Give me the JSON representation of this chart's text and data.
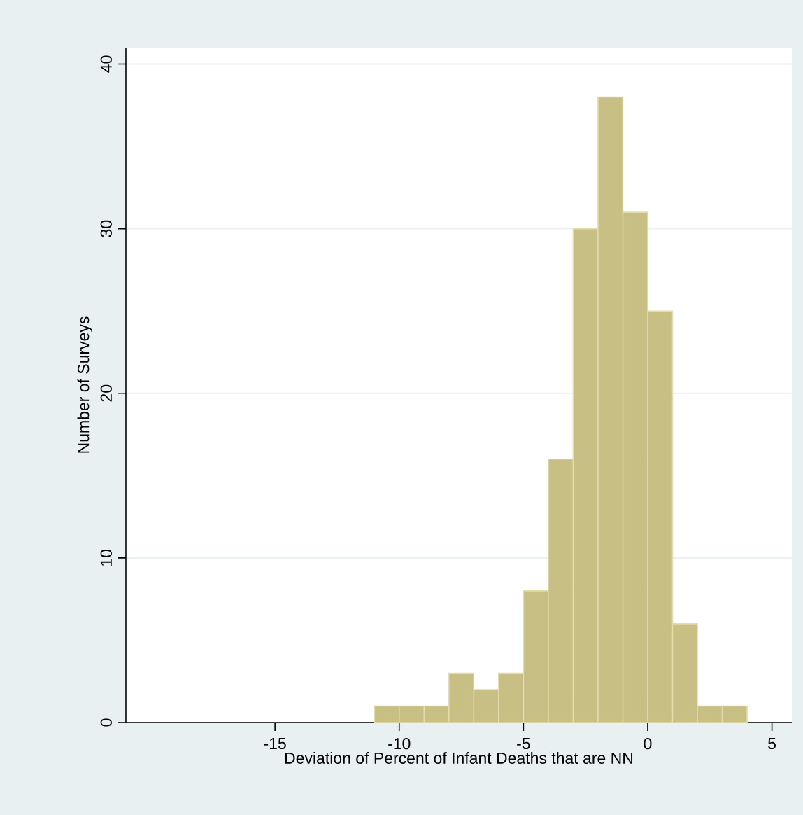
{
  "chart_data": {
    "type": "histogram",
    "xlabel": "Deviation of Percent of Infant Deaths that are NN",
    "ylabel": "Number of Surveys",
    "bins": [
      -11,
      -10,
      -9,
      -8,
      -7,
      -6,
      -5,
      -4,
      -3,
      -2,
      -1,
      0,
      1,
      2,
      3,
      4
    ],
    "values": [
      1,
      1,
      1,
      3,
      2,
      3,
      8,
      16,
      30,
      38,
      31,
      25,
      6,
      1,
      1
    ],
    "color": "#c8bf84",
    "xlim": [
      -21,
      5.8
    ],
    "ylim": [
      0,
      41
    ],
    "xticks": [
      -15,
      -10,
      -5,
      0,
      5
    ],
    "yticks": [
      0,
      10,
      20,
      30,
      40
    ],
    "grid": "y"
  }
}
